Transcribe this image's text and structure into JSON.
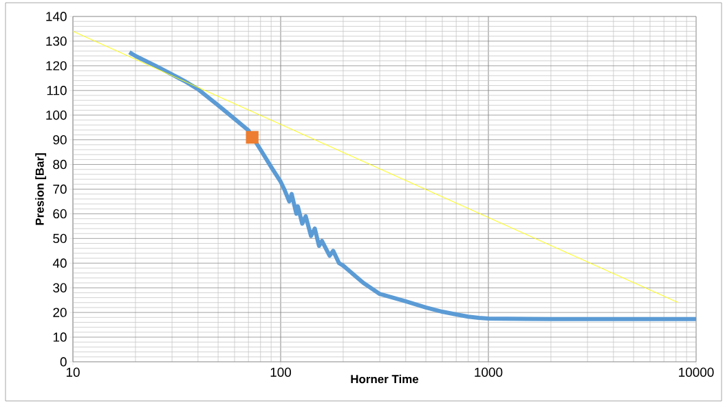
{
  "chart_data": {
    "type": "line",
    "xlabel": "Horner Time",
    "ylabel": "Presion [Bar]",
    "log": "x",
    "grid": true,
    "xlim": [
      10,
      10000
    ],
    "xticks": [
      10,
      100,
      1000,
      10000
    ],
    "ylim": [
      0,
      140
    ],
    "yticks": [
      0,
      10,
      20,
      30,
      40,
      50,
      60,
      70,
      80,
      90,
      100,
      110,
      120,
      130,
      140
    ],
    "series": [
      {
        "color": "#5b9bd5",
        "marker": "none",
        "x": [
          18.7,
          20,
          25,
          30,
          35,
          40,
          50,
          60,
          70,
          80,
          90,
          100,
          104,
          110,
          113,
          119,
          121,
          127,
          132,
          140,
          146,
          153,
          158,
          172,
          179,
          191,
          200,
          250,
          300,
          400,
          500,
          600,
          700,
          800,
          900,
          1000,
          2000,
          5000,
          10000
        ],
        "values": [
          125.5,
          124,
          120,
          116.5,
          113.5,
          110.5,
          104,
          98.5,
          93.8,
          86,
          79,
          73,
          70,
          65,
          68,
          60,
          63,
          56,
          59,
          51,
          54,
          47,
          49,
          43,
          45,
          40,
          39,
          32,
          27.5,
          24.5,
          22,
          20.3,
          19.2,
          18.3,
          17.8,
          17.5,
          17.3,
          17.3,
          17.3
        ]
      },
      {
        "type": "scatter",
        "color": "#ed7d31",
        "marker": "square",
        "x": [
          73
        ],
        "values": [
          91
        ]
      },
      {
        "color": "#ffff00",
        "marker": "none",
        "x": [
          10,
          8200
        ],
        "values": [
          134,
          24
        ]
      }
    ]
  }
}
